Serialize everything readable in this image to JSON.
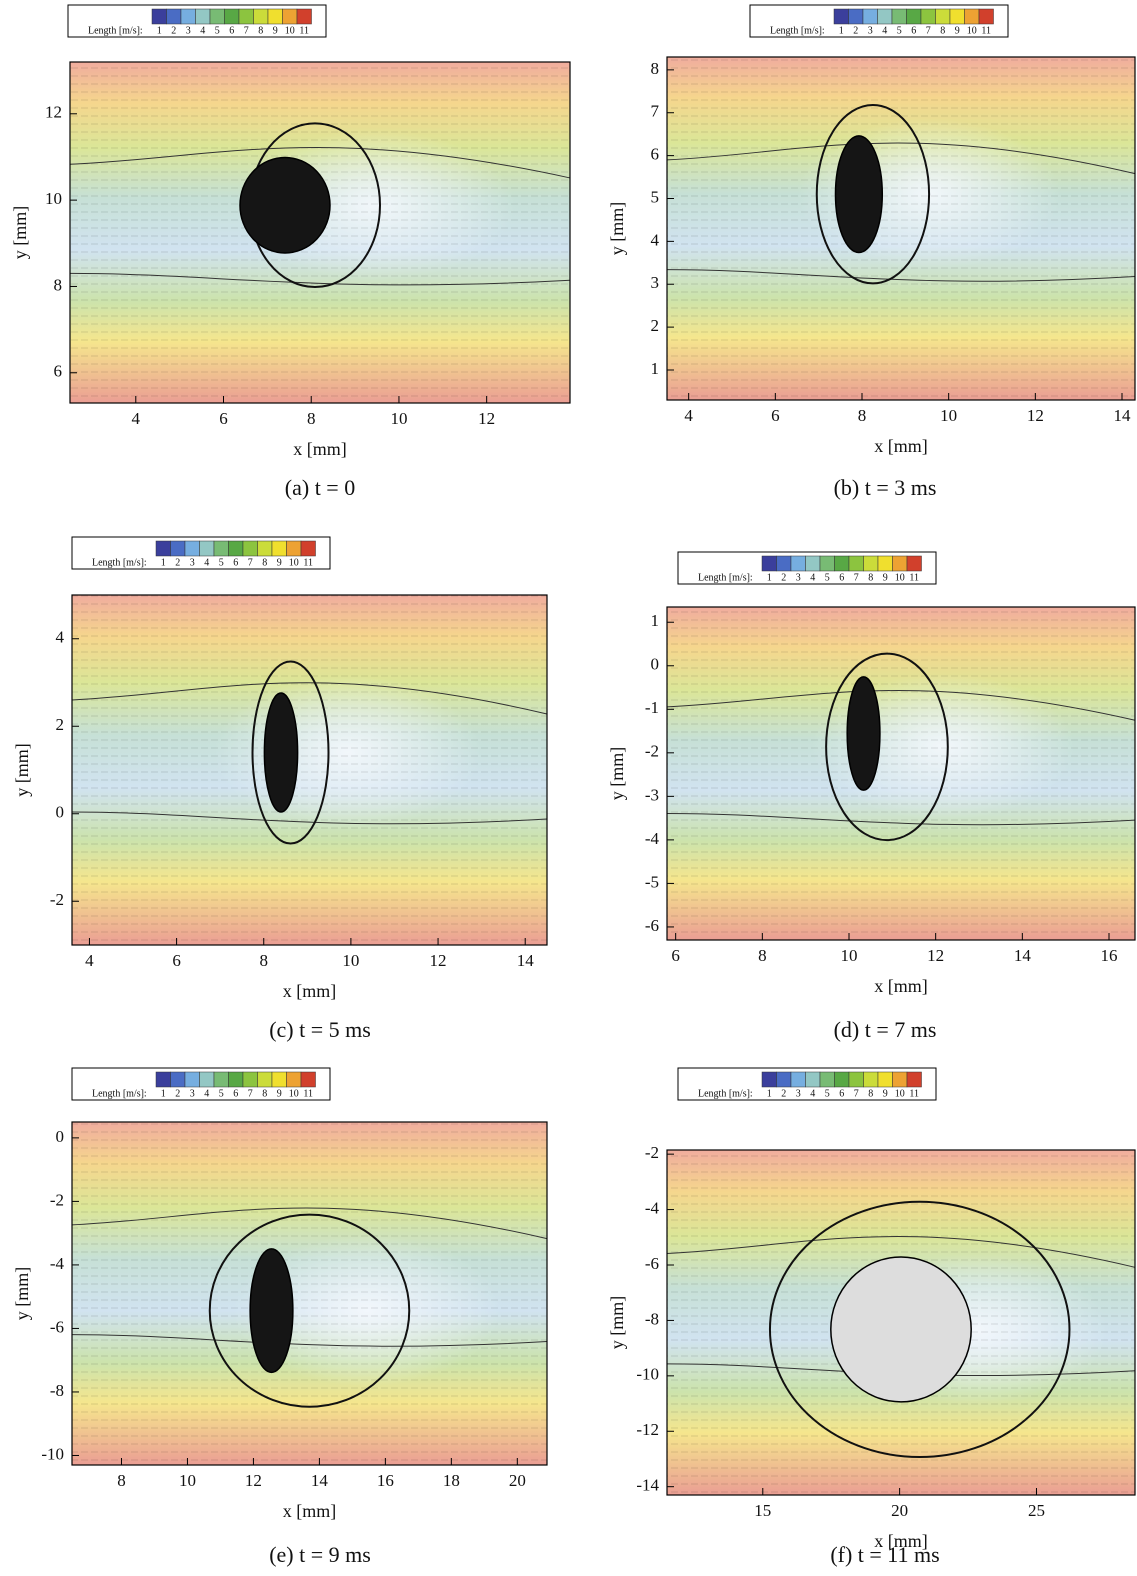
{
  "colorbar": {
    "label": "Length [m/s]:",
    "ticks": [
      1,
      2,
      3,
      4,
      5,
      6,
      7,
      8,
      9,
      10,
      11
    ],
    "colors": [
      "#3b3f9c",
      "#4a6cc4",
      "#76aee0",
      "#93c7c4",
      "#78bb74",
      "#58a845",
      "#8cc43f",
      "#cbdc3a",
      "#f0df2e",
      "#eda233",
      "#d1402c"
    ]
  },
  "panels": [
    {
      "caption": "(a) t = 0",
      "x_label": "x [mm]",
      "y_label": "y [mm]",
      "xlim": [
        2.5,
        13.9
      ],
      "ylim": [
        5.3,
        13.2
      ],
      "xticks": [
        4,
        6,
        8,
        10,
        12
      ],
      "yticks": [
        6,
        8,
        10,
        12
      ]
    },
    {
      "caption": "(b) t = 3 ms",
      "x_label": "x [mm]",
      "y_label": "y [mm]",
      "xlim": [
        3.5,
        14.3
      ],
      "ylim": [
        0.3,
        8.3
      ],
      "xticks": [
        4,
        6,
        8,
        10,
        12,
        14
      ],
      "yticks": [
        1,
        2,
        3,
        4,
        5,
        6,
        7,
        8
      ]
    },
    {
      "caption": "(c) t = 5 ms",
      "x_label": "x [mm]",
      "y_label": "y [mm]",
      "xlim": [
        3.6,
        14.5
      ],
      "ylim": [
        -3.0,
        5.0
      ],
      "xticks": [
        4,
        6,
        8,
        10,
        12,
        14
      ],
      "yticks": [
        -2,
        0,
        2,
        4
      ]
    },
    {
      "caption": "(d) t = 7 ms",
      "x_label": "x [mm]",
      "y_label": "y [mm]",
      "xlim": [
        5.8,
        16.6
      ],
      "ylim": [
        -6.3,
        1.35
      ],
      "xticks": [
        6,
        8,
        10,
        12,
        14,
        16
      ],
      "yticks": [
        -6,
        -5,
        -4,
        -3,
        -2,
        -1,
        0,
        1
      ]
    },
    {
      "caption": "(e) t = 9 ms",
      "x_label": "x [mm]",
      "y_label": "y [mm]",
      "xlim": [
        6.5,
        20.9
      ],
      "ylim": [
        -10.3,
        0.5
      ],
      "xticks": [
        8,
        10,
        12,
        14,
        16,
        18,
        20
      ],
      "yticks": [
        -10,
        -8,
        -6,
        -4,
        -2,
        0
      ]
    },
    {
      "caption": "(f) t = 11 ms",
      "x_label": "x [mm]",
      "y_label": "y [mm]",
      "xlim": [
        11.5,
        28.6
      ],
      "ylim": [
        -14.3,
        -1.85
      ],
      "xticks": [
        15,
        20,
        25
      ],
      "yticks": [
        -14,
        -12,
        -10,
        -8,
        -6,
        -4,
        -2
      ]
    }
  ]
}
